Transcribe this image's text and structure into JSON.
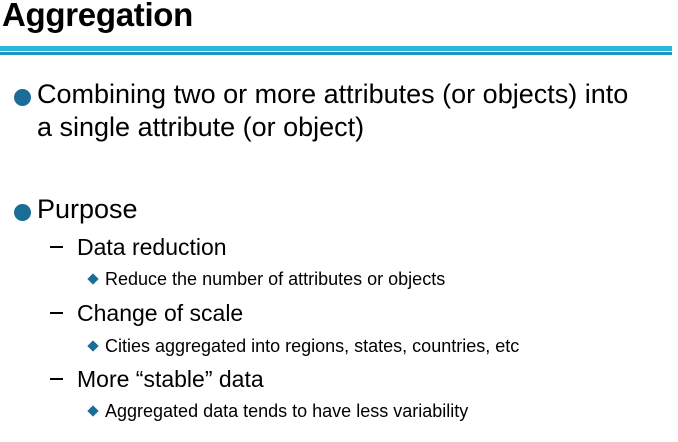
{
  "slide": {
    "title": "Aggregation",
    "bullets": [
      {
        "line1": "Combining two or more attributes (or objects) into",
        "line2": "a single attribute (or object)"
      },
      {
        "label": "Purpose",
        "subitems": [
          {
            "label": "Data reduction",
            "detail": "Reduce the number of attributes or objects"
          },
          {
            "label": "Change of scale",
            "detail": "Cities aggregated into regions, states, countries, etc"
          },
          {
            "label": "More “stable” data",
            "detail": "Aggregated data tends to have less variability"
          }
        ]
      }
    ]
  },
  "colors": {
    "rule_top": "#2bb7d9",
    "rule_bottom": "#1d96bf",
    "bullet": "#1a6d96"
  }
}
